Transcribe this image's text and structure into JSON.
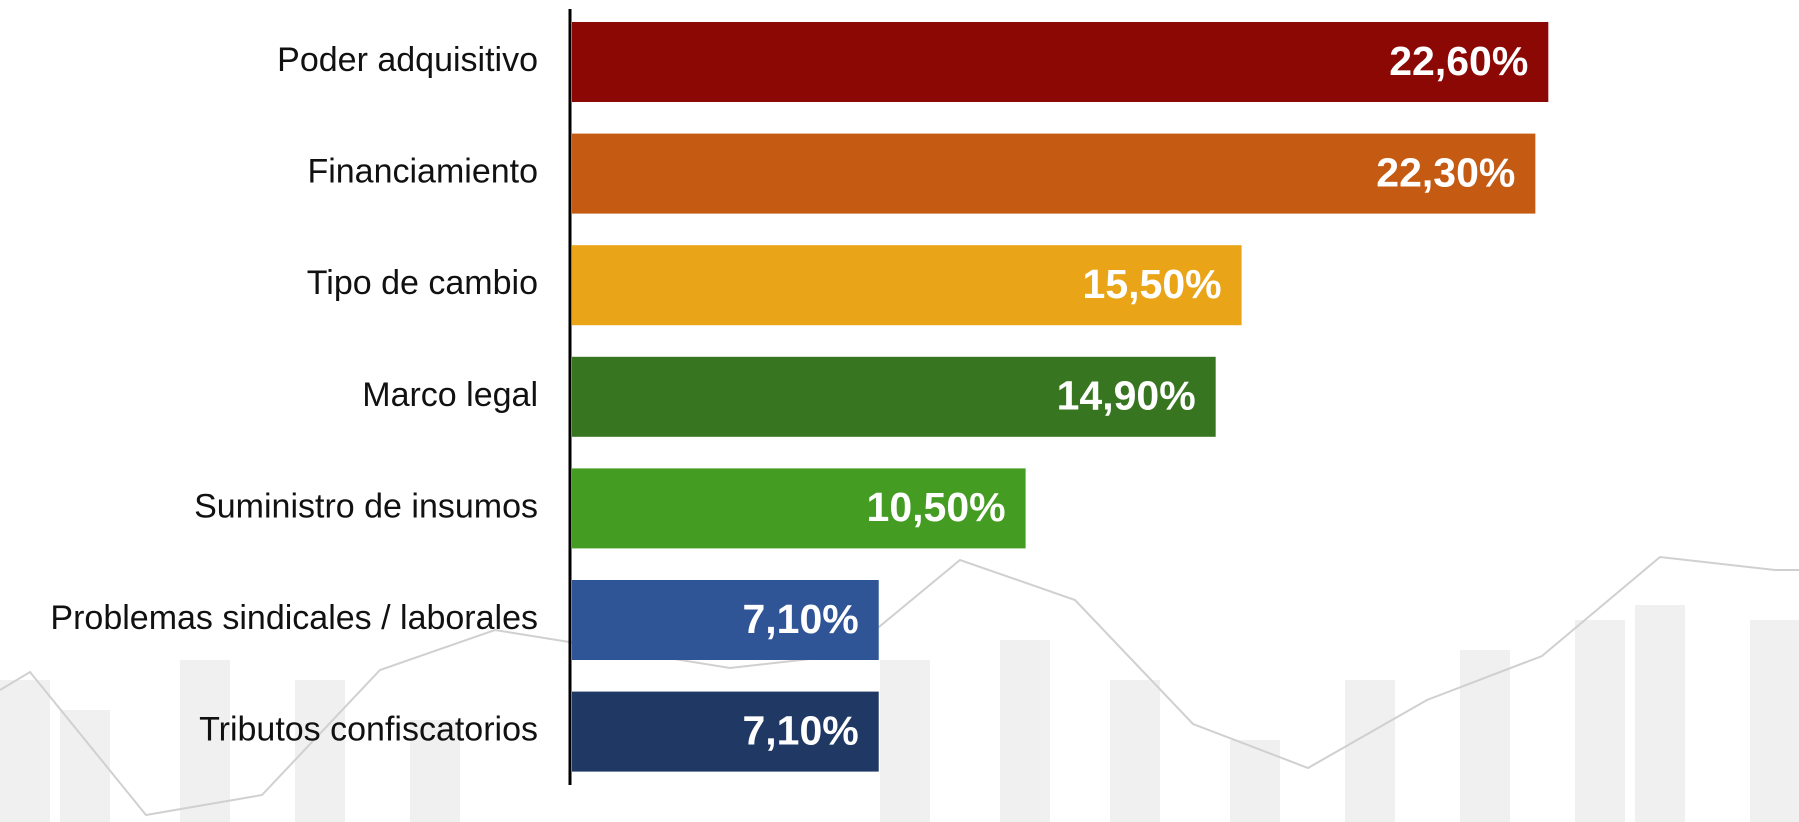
{
  "chart_data": {
    "type": "hbar",
    "categories": [
      "Poder adquisitivo",
      "Financiamiento",
      "Tipo de cambio",
      "Marco legal",
      "Suministro de insumos",
      "Problemas sindicales / laborales",
      "Tributos confiscatorios"
    ],
    "values": [
      22.6,
      22.3,
      15.5,
      14.9,
      10.5,
      7.1,
      7.1
    ],
    "value_labels": [
      "22,60%",
      "22,30%",
      "15,50%",
      "14,90%",
      "10,50%",
      "7,10%",
      "7,10%"
    ],
    "colors": [
      "#8b0804",
      "#c55a12",
      "#eaa417",
      "#377520",
      "#459c22",
      "#2f5597",
      "#203864"
    ]
  }
}
